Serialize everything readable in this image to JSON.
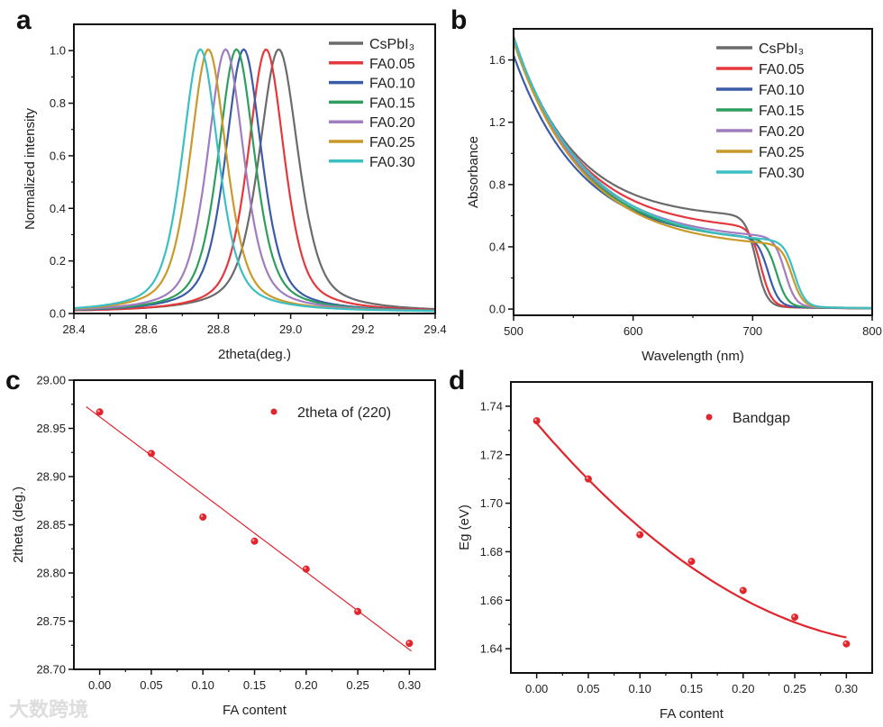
{
  "chart_data": [
    {
      "panel": "a",
      "type": "line",
      "xlabel": "2theta(deg.)",
      "ylabel": "Normalized intensity",
      "xlim": [
        28.4,
        29.4
      ],
      "ylim": [
        0,
        1.1
      ],
      "xticks": [
        28.4,
        28.6,
        28.8,
        29.0,
        29.2,
        29.4
      ],
      "yticks": [
        0.0,
        0.2,
        0.4,
        0.6,
        0.8,
        1.0
      ],
      "legend_position": "top-right",
      "series": [
        {
          "name": "CsPbI₃",
          "color": "#6b6b6b",
          "peak_center": 28.967,
          "fwhm": 0.13,
          "peak": 1.0
        },
        {
          "name": "FA0.05",
          "color": "#e5383d",
          "peak_center": 28.932,
          "fwhm": 0.12,
          "peak": 1.0
        },
        {
          "name": "FA0.10",
          "color": "#3a5ca8",
          "peak_center": 28.87,
          "fwhm": 0.12,
          "peak": 1.0
        },
        {
          "name": "FA0.15",
          "color": "#2e9e5e",
          "peak_center": 28.85,
          "fwhm": 0.12,
          "peak": 1.0
        },
        {
          "name": "FA0.20",
          "color": "#a07cc0",
          "peak_center": 28.82,
          "fwhm": 0.12,
          "peak": 1.0
        },
        {
          "name": "FA0.25",
          "color": "#c9992a",
          "peak_center": 28.772,
          "fwhm": 0.12,
          "peak": 1.0
        },
        {
          "name": "FA0.30",
          "color": "#3cbfc4",
          "peak_center": 28.75,
          "fwhm": 0.12,
          "peak": 1.0
        }
      ]
    },
    {
      "panel": "b",
      "type": "line",
      "xlabel": "Wavelength (nm)",
      "ylabel": "Absorbance",
      "xlim": [
        500,
        800
      ],
      "ylim": [
        -0.04,
        1.8
      ],
      "xticks": [
        500,
        600,
        700,
        800
      ],
      "yticks": [
        0.0,
        0.4,
        0.8,
        1.2,
        1.6
      ],
      "legend_position": "top-right",
      "series": [
        {
          "name": "CsPbI₃",
          "color": "#6b6b6b",
          "absorbance_at_500": 1.75,
          "plateau": 0.58,
          "edge_nm": 703,
          "decay_nm": 50
        },
        {
          "name": "FA0.05",
          "color": "#e5383d",
          "absorbance_at_500": 1.72,
          "plateau": 0.5,
          "edge_nm": 707,
          "decay_nm": 55
        },
        {
          "name": "FA0.10",
          "color": "#3a5ca8",
          "absorbance_at_500": 1.63,
          "plateau": 0.43,
          "edge_nm": 713,
          "decay_nm": 56
        },
        {
          "name": "FA0.15",
          "color": "#2e9e5e",
          "absorbance_at_500": 1.72,
          "plateau": 0.42,
          "edge_nm": 720,
          "decay_nm": 57
        },
        {
          "name": "FA0.20",
          "color": "#a07cc0",
          "absorbance_at_500": 1.72,
          "plateau": 0.44,
          "edge_nm": 727,
          "decay_nm": 57
        },
        {
          "name": "FA0.25",
          "color": "#c9992a",
          "absorbance_at_500": 1.72,
          "plateau": 0.39,
          "edge_nm": 733,
          "decay_nm": 58
        },
        {
          "name": "FA0.30",
          "color": "#3cbfc4",
          "absorbance_at_500": 1.74,
          "plateau": 0.41,
          "edge_nm": 735,
          "decay_nm": 60
        }
      ]
    },
    {
      "panel": "c",
      "type": "scatter",
      "xlabel": "FA content",
      "ylabel": "2theta (deg.)",
      "xlim": [
        -0.025,
        0.325
      ],
      "ylim": [
        28.7,
        29.0
      ],
      "xticks": [
        "0.00",
        "0.05",
        "0.10",
        "0.15",
        "0.20",
        "0.25",
        "0.30"
      ],
      "yticks": [
        "28.70",
        "28.75",
        "28.80",
        "28.85",
        "28.90",
        "28.95",
        "29.00"
      ],
      "legend_position": "top-right",
      "series": [
        {
          "name": "2theta of (220)",
          "color": "#e0252c",
          "x": [
            0.0,
            0.05,
            0.1,
            0.15,
            0.2,
            0.25,
            0.3
          ],
          "y": [
            28.967,
            28.924,
            28.858,
            28.833,
            28.804,
            28.76,
            28.727
          ]
        }
      ],
      "fit": {
        "type": "linear",
        "intercept": 28.962,
        "slope": -0.805,
        "x_range": [
          -0.013,
          0.305
        ],
        "color": "#e0252c"
      }
    },
    {
      "panel": "d",
      "type": "scatter",
      "xlabel": "FA content",
      "ylabel": "Eg (eV)",
      "xlim": [
        -0.025,
        0.325
      ],
      "ylim": [
        1.63,
        1.75
      ],
      "xticks": [
        "0.00",
        "0.05",
        "0.10",
        "0.15",
        "0.20",
        "0.25",
        "0.30"
      ],
      "yticks": [
        "1.64",
        "1.66",
        "1.68",
        "1.70",
        "1.72",
        "1.74"
      ],
      "legend_position": "top-right",
      "series": [
        {
          "name": "Bandgap",
          "color": "#e0252c",
          "x": [
            0.0,
            0.05,
            0.1,
            0.15,
            0.2,
            0.25,
            0.3
          ],
          "y": [
            1.734,
            1.71,
            1.687,
            1.676,
            1.664,
            1.653,
            1.642
          ]
        }
      ],
      "fit": {
        "type": "quadratic",
        "coefficients": [
          1.733,
          -0.498,
          0.678
        ],
        "x_range": [
          0.0,
          0.3
        ],
        "color": "#e0252c"
      }
    }
  ],
  "panel_labels": [
    "a",
    "b",
    "c",
    "d"
  ],
  "watermark": "大数跨境"
}
